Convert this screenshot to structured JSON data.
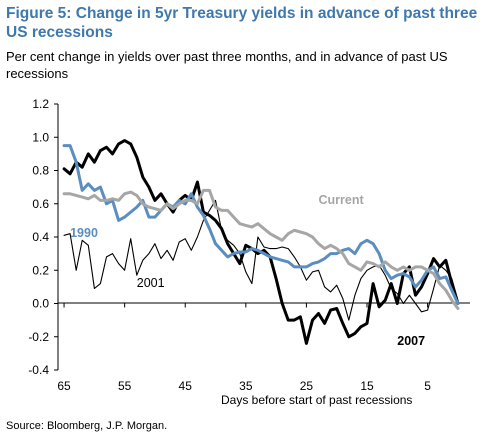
{
  "figure": {
    "title": "Figure 5: Change in 5yr Treasury yields in advance of past three US recessions",
    "subtitle": "Per cent change in yields over past three months, and in advance of past US recessions",
    "source": "Source: Bloomberg, J.P. Morgan."
  },
  "chart_data": {
    "type": "line",
    "title": "Figure 5: Change in 5yr Treasury yields in advance of past three US recessions",
    "subtitle": "Per cent change in yields over past three months, and in advance of past US recessions",
    "xlabel": "Days before start of past recessions",
    "ylabel": "",
    "xlim": [
      66,
      -2
    ],
    "ylim": [
      -0.4,
      1.2
    ],
    "x_reversed": true,
    "x_ticks": [
      65,
      55,
      45,
      35,
      25,
      15,
      5
    ],
    "y_ticks": [
      1.2,
      1.0,
      0.8,
      0.6,
      0.4,
      0.2,
      0.0,
      -0.2,
      -0.4
    ],
    "y_tick_labels": [
      "1.2",
      "1.0",
      "0.8",
      "0.6",
      "0.4",
      "0.2",
      "0.0",
      "-0.2",
      "-0.4"
    ],
    "grid": false,
    "legend": "inline labels",
    "series": [
      {
        "name": "2001",
        "label_at": [
          53,
          0.1
        ],
        "color": "#000000",
        "stroke_width": 1.1,
        "points": [
          [
            65,
            0.41
          ],
          [
            64,
            0.42
          ],
          [
            63,
            0.2
          ],
          [
            62,
            0.38
          ],
          [
            61,
            0.35
          ],
          [
            60,
            0.09
          ],
          [
            59,
            0.12
          ],
          [
            58,
            0.28
          ],
          [
            57,
            0.3
          ],
          [
            56,
            0.24
          ],
          [
            55,
            0.2
          ],
          [
            54,
            0.39
          ],
          [
            53,
            0.17
          ],
          [
            52,
            0.26
          ],
          [
            51,
            0.3
          ],
          [
            50,
            0.36
          ],
          [
            49,
            0.27
          ],
          [
            48,
            0.32
          ],
          [
            47,
            0.26
          ],
          [
            46,
            0.37
          ],
          [
            45,
            0.39
          ],
          [
            44,
            0.32
          ],
          [
            43,
            0.4
          ],
          [
            42,
            0.5
          ],
          [
            41,
            0.56
          ],
          [
            40,
            0.62
          ],
          [
            39,
            0.44
          ],
          [
            38,
            0.38
          ],
          [
            37,
            0.35
          ],
          [
            36,
            0.3
          ],
          [
            35,
            0.19
          ],
          [
            34,
            0.12
          ],
          [
            33,
            0.4
          ],
          [
            32,
            0.34
          ],
          [
            31,
            0.33
          ],
          [
            30,
            0.33
          ],
          [
            29,
            0.34
          ],
          [
            28,
            0.33
          ],
          [
            27,
            0.28
          ],
          [
            26,
            0.22
          ],
          [
            25,
            0.14
          ],
          [
            24,
            0.19
          ],
          [
            23,
            0.2
          ],
          [
            22,
            0.1
          ],
          [
            21,
            0.07
          ],
          [
            20,
            0.11
          ],
          [
            19,
            0.03
          ],
          [
            18,
            -0.1
          ],
          [
            17,
            0.05
          ],
          [
            16,
            0.15
          ],
          [
            15,
            0.2
          ],
          [
            14,
            0.22
          ],
          [
            13,
            0.23
          ],
          [
            12,
            0.17
          ],
          [
            11,
            0.09
          ],
          [
            10,
            0.06
          ],
          [
            9,
            0.0
          ],
          [
            8,
            0.05
          ],
          [
            7,
            0.0
          ],
          [
            6,
            -0.05
          ],
          [
            5,
            -0.04
          ],
          [
            4,
            0.09
          ],
          [
            3,
            0.23
          ],
          [
            2,
            0.2
          ],
          [
            1,
            0.15
          ],
          [
            0,
            0.02
          ]
        ]
      },
      {
        "name": "2007",
        "label_at": [
          10,
          -0.25
        ],
        "color": "#000000",
        "stroke_width": 3.0,
        "points": [
          [
            65,
            0.81
          ],
          [
            64,
            0.78
          ],
          [
            63,
            0.85
          ],
          [
            62,
            0.82
          ],
          [
            61,
            0.9
          ],
          [
            60,
            0.85
          ],
          [
            59,
            0.92
          ],
          [
            58,
            0.94
          ],
          [
            57,
            0.9
          ],
          [
            56,
            0.96
          ],
          [
            55,
            0.98
          ],
          [
            54,
            0.96
          ],
          [
            53,
            0.88
          ],
          [
            52,
            0.76
          ],
          [
            51,
            0.7
          ],
          [
            50,
            0.62
          ],
          [
            49,
            0.66
          ],
          [
            48,
            0.6
          ],
          [
            47,
            0.55
          ],
          [
            46,
            0.62
          ],
          [
            45,
            0.65
          ],
          [
            44,
            0.62
          ],
          [
            43,
            0.73
          ],
          [
            42,
            0.55
          ],
          [
            41,
            0.53
          ],
          [
            40,
            0.5
          ],
          [
            39,
            0.45
          ],
          [
            38,
            0.36
          ],
          [
            37,
            0.3
          ],
          [
            36,
            0.24
          ],
          [
            35,
            0.35
          ],
          [
            34,
            0.33
          ],
          [
            33,
            0.3
          ],
          [
            32,
            0.32
          ],
          [
            31,
            0.28
          ],
          [
            30,
            0.15
          ],
          [
            29,
            0.0
          ],
          [
            28,
            -0.1
          ],
          [
            27,
            -0.1
          ],
          [
            26,
            -0.08
          ],
          [
            25,
            -0.24
          ],
          [
            24,
            -0.1
          ],
          [
            23,
            -0.06
          ],
          [
            22,
            -0.12
          ],
          [
            21,
            -0.04
          ],
          [
            20,
            -0.03
          ],
          [
            19,
            -0.12
          ],
          [
            18,
            -0.2
          ],
          [
            17,
            -0.18
          ],
          [
            16,
            -0.14
          ],
          [
            15,
            -0.12
          ],
          [
            14,
            0.12
          ],
          [
            13,
            -0.02
          ],
          [
            12,
            0.02
          ],
          [
            11,
            0.12
          ],
          [
            10,
            0.0
          ],
          [
            9,
            0.18
          ],
          [
            8,
            0.22
          ],
          [
            7,
            0.05
          ],
          [
            6,
            0.1
          ],
          [
            5,
            0.18
          ],
          [
            4,
            0.27
          ],
          [
            3,
            0.22
          ],
          [
            2,
            0.26
          ],
          [
            1,
            0.12
          ],
          [
            0,
            0.0
          ]
        ]
      },
      {
        "name": "1990",
        "label_at": [
          64,
          0.4
        ],
        "color": "#5a8ec0",
        "stroke_width": 3.0,
        "points": [
          [
            65,
            0.95
          ],
          [
            64,
            0.95
          ],
          [
            63,
            0.85
          ],
          [
            62,
            0.68
          ],
          [
            61,
            0.72
          ],
          [
            60,
            0.68
          ],
          [
            59,
            0.7
          ],
          [
            58,
            0.6
          ],
          [
            57,
            0.62
          ],
          [
            56,
            0.5
          ],
          [
            55,
            0.52
          ],
          [
            54,
            0.55
          ],
          [
            53,
            0.58
          ],
          [
            52,
            0.62
          ],
          [
            51,
            0.52
          ],
          [
            50,
            0.52
          ],
          [
            49,
            0.56
          ],
          [
            48,
            0.6
          ],
          [
            47,
            0.58
          ],
          [
            46,
            0.62
          ],
          [
            45,
            0.6
          ],
          [
            44,
            0.66
          ],
          [
            43,
            0.58
          ],
          [
            42,
            0.53
          ],
          [
            41,
            0.45
          ],
          [
            40,
            0.36
          ],
          [
            39,
            0.32
          ],
          [
            38,
            0.28
          ],
          [
            37,
            0.3
          ],
          [
            36,
            0.31
          ],
          [
            35,
            0.31
          ],
          [
            34,
            0.33
          ],
          [
            33,
            0.32
          ],
          [
            32,
            0.3
          ],
          [
            31,
            0.28
          ],
          [
            30,
            0.27
          ],
          [
            29,
            0.26
          ],
          [
            28,
            0.25
          ],
          [
            27,
            0.22
          ],
          [
            26,
            0.22
          ],
          [
            25,
            0.22
          ],
          [
            24,
            0.24
          ],
          [
            23,
            0.25
          ],
          [
            22,
            0.27
          ],
          [
            21,
            0.3
          ],
          [
            20,
            0.3
          ],
          [
            19,
            0.32
          ],
          [
            18,
            0.33
          ],
          [
            17,
            0.3
          ],
          [
            16,
            0.36
          ],
          [
            15,
            0.38
          ],
          [
            14,
            0.36
          ],
          [
            13,
            0.3
          ],
          [
            12,
            0.2
          ],
          [
            11,
            0.15
          ],
          [
            10,
            0.17
          ],
          [
            9,
            0.18
          ],
          [
            8,
            0.16
          ],
          [
            7,
            0.1
          ],
          [
            6,
            0.14
          ],
          [
            5,
            0.2
          ],
          [
            4,
            0.22
          ],
          [
            3,
            0.15
          ],
          [
            2,
            0.16
          ],
          [
            1,
            0.08
          ],
          [
            0,
            0.0
          ]
        ]
      },
      {
        "name": "Current",
        "label_at": [
          23,
          0.6
        ],
        "color": "#a6a6a6",
        "stroke_width": 3.0,
        "points": [
          [
            65,
            0.66
          ],
          [
            64,
            0.66
          ],
          [
            63,
            0.65
          ],
          [
            62,
            0.64
          ],
          [
            61,
            0.63
          ],
          [
            60,
            0.65
          ],
          [
            59,
            0.62
          ],
          [
            58,
            0.62
          ],
          [
            57,
            0.63
          ],
          [
            56,
            0.62
          ],
          [
            55,
            0.66
          ],
          [
            54,
            0.67
          ],
          [
            53,
            0.65
          ],
          [
            52,
            0.6
          ],
          [
            51,
            0.58
          ],
          [
            50,
            0.57
          ],
          [
            49,
            0.56
          ],
          [
            48,
            0.6
          ],
          [
            47,
            0.57
          ],
          [
            46,
            0.6
          ],
          [
            45,
            0.62
          ],
          [
            44,
            0.62
          ],
          [
            43,
            0.6
          ],
          [
            42,
            0.68
          ],
          [
            41,
            0.68
          ],
          [
            40,
            0.58
          ],
          [
            39,
            0.56
          ],
          [
            38,
            0.56
          ],
          [
            37,
            0.52
          ],
          [
            36,
            0.48
          ],
          [
            35,
            0.47
          ],
          [
            34,
            0.46
          ],
          [
            33,
            0.48
          ],
          [
            32,
            0.45
          ],
          [
            31,
            0.42
          ],
          [
            30,
            0.4
          ],
          [
            29,
            0.38
          ],
          [
            28,
            0.42
          ],
          [
            27,
            0.44
          ],
          [
            26,
            0.43
          ],
          [
            25,
            0.42
          ],
          [
            24,
            0.4
          ],
          [
            23,
            0.36
          ],
          [
            22,
            0.33
          ],
          [
            21,
            0.35
          ],
          [
            20,
            0.33
          ],
          [
            19,
            0.3
          ],
          [
            18,
            0.24
          ],
          [
            17,
            0.22
          ],
          [
            16,
            0.2
          ],
          [
            15,
            0.25
          ],
          [
            14,
            0.24
          ],
          [
            13,
            0.22
          ],
          [
            12,
            0.25
          ],
          [
            11,
            0.22
          ],
          [
            10,
            0.2
          ],
          [
            9,
            0.22
          ],
          [
            8,
            0.2
          ],
          [
            7,
            0.22
          ],
          [
            6,
            0.22
          ],
          [
            5,
            0.2
          ],
          [
            4,
            0.18
          ],
          [
            3,
            0.12
          ],
          [
            2,
            0.08
          ],
          [
            1,
            0.02
          ],
          [
            0,
            -0.03
          ]
        ]
      }
    ]
  }
}
